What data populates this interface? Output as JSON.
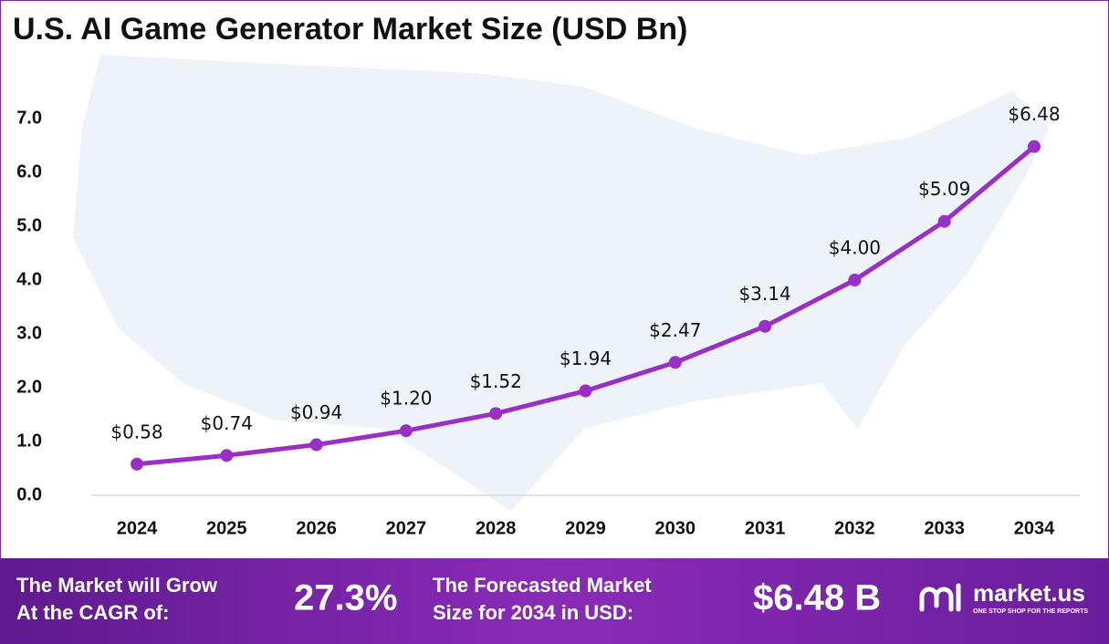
{
  "chart_data": {
    "type": "line",
    "title": "U.S. AI Game Generator Market Size (USD Bn)",
    "categories": [
      "2024",
      "2025",
      "2026",
      "2027",
      "2028",
      "2029",
      "2030",
      "2031",
      "2032",
      "2033",
      "2034"
    ],
    "series": [
      {
        "color": "#9a2fc6",
        "values": [
          0.58,
          0.74,
          0.94,
          1.2,
          1.52,
          1.94,
          2.47,
          3.14,
          4.0,
          5.09,
          6.48
        ],
        "value_labels": [
          "$0.58",
          "$0.74",
          "$0.94",
          "$1.20",
          "$1.52",
          "$1.94",
          "$2.47",
          "$3.14",
          "$4.00",
          "$5.09",
          "$6.48"
        ]
      }
    ],
    "ylim": [
      0,
      7
    ],
    "yticks": [
      {
        "value": 0,
        "label": "0.0"
      },
      {
        "value": 1,
        "label": "1.0"
      },
      {
        "value": 2,
        "label": "2.0"
      },
      {
        "value": 3,
        "label": "3.0"
      },
      {
        "value": 4,
        "label": "4.0"
      },
      {
        "value": 5,
        "label": "5.0"
      },
      {
        "value": 6,
        "label": "6.0"
      },
      {
        "value": 7,
        "label": "7.0"
      }
    ]
  },
  "footer": {
    "cagr_text": [
      "The Market will Grow",
      "At the CAGR of:"
    ],
    "cagr_value": "27.3%",
    "forecast_text": [
      "The Forecasted Market",
      "Size for 2034 in USD:"
    ],
    "forecast_value": "$6.48 B",
    "brand": "market.us",
    "tagline": "ONE STOP SHOP FOR THE REPORTS"
  }
}
